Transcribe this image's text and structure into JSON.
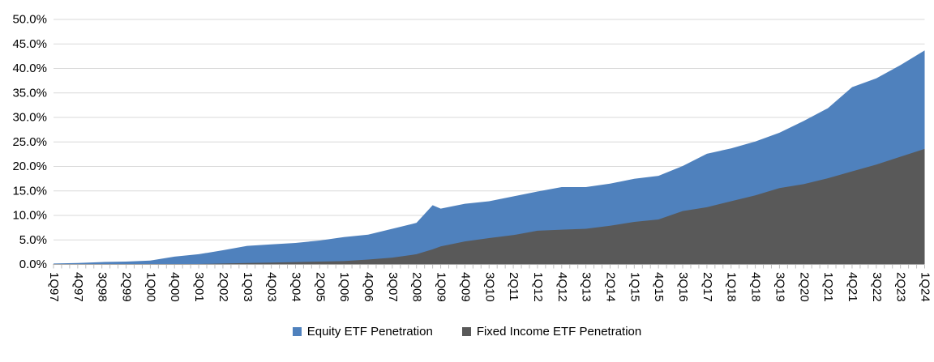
{
  "chart": {
    "colors": {
      "equity": "#4F81BD",
      "fixed_income": "#595959",
      "gridline": "#D9D9D9",
      "axis_line": "#A6A6A6",
      "tick": "#BFBFBF",
      "text": "#000000"
    }
  },
  "chart_data": {
    "type": "area",
    "mode": "overlapping",
    "title": "",
    "xlabel": "",
    "ylabel": "",
    "unit": "%",
    "ylim": [
      0,
      50
    ],
    "y_tick_step": 5,
    "grid": true,
    "legend_position": "bottom-center",
    "legend": [
      "Equity ETF Penetration",
      "Fixed Income ETF Penetration"
    ],
    "y_axis_tick_labels": [
      "0.0%",
      "5.0%",
      "10.0%",
      "15.0%",
      "20.0%",
      "25.0%",
      "30.0%",
      "35.0%",
      "40.0%",
      "45.0%",
      "50.0%"
    ],
    "x_tick_labels": [
      "1Q97",
      "4Q97",
      "3Q98",
      "2Q99",
      "1Q00",
      "4Q00",
      "3Q01",
      "2Q02",
      "1Q03",
      "4Q03",
      "3Q04",
      "2Q05",
      "1Q06",
      "4Q06",
      "3Q07",
      "2Q08",
      "1Q09",
      "4Q09",
      "3Q10",
      "2Q11",
      "1Q12",
      "4Q12",
      "3Q13",
      "2Q14",
      "1Q15",
      "4Q15",
      "3Q16",
      "2Q17",
      "1Q18",
      "4Q18",
      "3Q19",
      "2Q20",
      "1Q21",
      "4Q21",
      "3Q22",
      "2Q23",
      "1Q24"
    ],
    "x_tick_interval_quarters": 3,
    "series_names": {
      "equity": "Equity ETF Penetration",
      "fixed_income": "Fixed Income ETF Penetration"
    },
    "points": [
      {
        "quarter": "1Q97",
        "t": 0,
        "equity": 0.1,
        "fixed_income": 0.0
      },
      {
        "quarter": "4Q97",
        "t": 3,
        "equity": 0.2,
        "fixed_income": 0.0
      },
      {
        "quarter": "3Q98",
        "t": 6,
        "equity": 0.4,
        "fixed_income": 0.0
      },
      {
        "quarter": "2Q99",
        "t": 9,
        "equity": 0.5,
        "fixed_income": 0.0
      },
      {
        "quarter": "1Q00",
        "t": 12,
        "equity": 0.7,
        "fixed_income": 0.0
      },
      {
        "quarter": "4Q00",
        "t": 15,
        "equity": 1.5,
        "fixed_income": 0.0
      },
      {
        "quarter": "3Q01",
        "t": 18,
        "equity": 2.0,
        "fixed_income": 0.0
      },
      {
        "quarter": "2Q02",
        "t": 21,
        "equity": 2.8,
        "fixed_income": 0.1
      },
      {
        "quarter": "1Q03",
        "t": 24,
        "equity": 3.7,
        "fixed_income": 0.2
      },
      {
        "quarter": "4Q03",
        "t": 27,
        "equity": 4.0,
        "fixed_income": 0.3
      },
      {
        "quarter": "3Q04",
        "t": 30,
        "equity": 4.3,
        "fixed_income": 0.4
      },
      {
        "quarter": "2Q05",
        "t": 33,
        "equity": 4.8,
        "fixed_income": 0.5
      },
      {
        "quarter": "1Q06",
        "t": 36,
        "equity": 5.5,
        "fixed_income": 0.6
      },
      {
        "quarter": "4Q06",
        "t": 39,
        "equity": 6.0,
        "fixed_income": 0.9
      },
      {
        "quarter": "3Q07",
        "t": 42,
        "equity": 7.2,
        "fixed_income": 1.3
      },
      {
        "quarter": "2Q08",
        "t": 45,
        "equity": 8.4,
        "fixed_income": 2.0
      },
      {
        "quarter": "4Q08",
        "t": 47,
        "equity": 12.0,
        "fixed_income": 3.0
      },
      {
        "quarter": "1Q09",
        "t": 48,
        "equity": 11.3,
        "fixed_income": 3.6
      },
      {
        "quarter": "4Q09",
        "t": 51,
        "equity": 12.3,
        "fixed_income": 4.6
      },
      {
        "quarter": "3Q10",
        "t": 54,
        "equity": 12.8,
        "fixed_income": 5.3
      },
      {
        "quarter": "2Q11",
        "t": 57,
        "equity": 13.8,
        "fixed_income": 5.9
      },
      {
        "quarter": "1Q12",
        "t": 60,
        "equity": 14.8,
        "fixed_income": 6.8
      },
      {
        "quarter": "4Q12",
        "t": 63,
        "equity": 15.7,
        "fixed_income": 7.0
      },
      {
        "quarter": "3Q13",
        "t": 66,
        "equity": 15.7,
        "fixed_income": 7.2
      },
      {
        "quarter": "2Q14",
        "t": 69,
        "equity": 16.4,
        "fixed_income": 7.8
      },
      {
        "quarter": "1Q15",
        "t": 72,
        "equity": 17.4,
        "fixed_income": 8.6
      },
      {
        "quarter": "4Q15",
        "t": 75,
        "equity": 18.0,
        "fixed_income": 9.1
      },
      {
        "quarter": "3Q16",
        "t": 78,
        "equity": 20.0,
        "fixed_income": 10.8
      },
      {
        "quarter": "2Q17",
        "t": 81,
        "equity": 22.5,
        "fixed_income": 11.6
      },
      {
        "quarter": "1Q18",
        "t": 84,
        "equity": 23.6,
        "fixed_income": 12.8
      },
      {
        "quarter": "4Q18",
        "t": 87,
        "equity": 25.0,
        "fixed_income": 14.0
      },
      {
        "quarter": "3Q19",
        "t": 90,
        "equity": 26.8,
        "fixed_income": 15.5
      },
      {
        "quarter": "2Q20",
        "t": 93,
        "equity": 29.2,
        "fixed_income": 16.3
      },
      {
        "quarter": "1Q21",
        "t": 96,
        "equity": 31.8,
        "fixed_income": 17.5
      },
      {
        "quarter": "4Q21",
        "t": 99,
        "equity": 36.1,
        "fixed_income": 18.9
      },
      {
        "quarter": "3Q22",
        "t": 102,
        "equity": 37.9,
        "fixed_income": 20.3
      },
      {
        "quarter": "2Q23",
        "t": 105,
        "equity": 40.6,
        "fixed_income": 21.9
      },
      {
        "quarter": "1Q24",
        "t": 108,
        "equity": 43.6,
        "fixed_income": 23.5
      }
    ]
  }
}
